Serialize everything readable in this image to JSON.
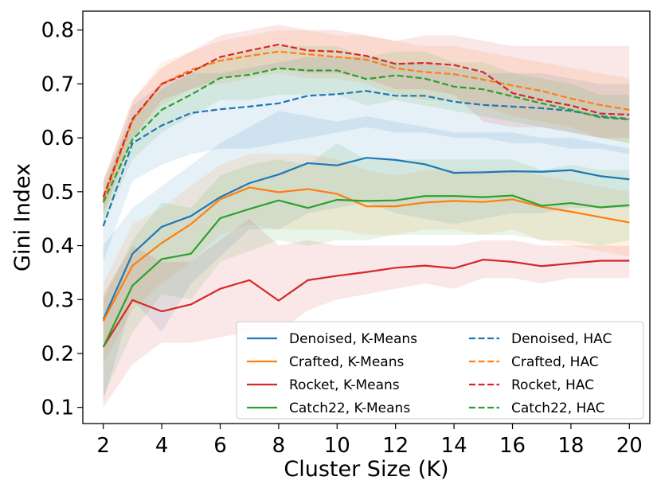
{
  "chart_data": {
    "type": "line",
    "title": "",
    "xlabel": "Cluster Size (K)",
    "ylabel": "Gini Index",
    "xlim": [
      1.3,
      20.7
    ],
    "ylim": [
      0.07,
      0.835
    ],
    "xticks": [
      2,
      4,
      6,
      8,
      10,
      12,
      14,
      16,
      18,
      20
    ],
    "yticks": [
      0.1,
      0.2,
      0.3,
      0.4,
      0.5,
      0.6,
      0.7,
      0.8
    ],
    "x": [
      2,
      3,
      4,
      5,
      6,
      7,
      8,
      9,
      10,
      11,
      12,
      13,
      14,
      15,
      16,
      17,
      18,
      19,
      20
    ],
    "legend_position": "lower-right",
    "series": [
      {
        "name": "Denoised, K-Means",
        "color": "#1f77b4",
        "style": "solid",
        "values": [
          0.263,
          0.385,
          0.435,
          0.455,
          0.49,
          0.516,
          0.532,
          0.553,
          0.549,
          0.563,
          0.559,
          0.551,
          0.535,
          0.536,
          0.538,
          0.537,
          0.54,
          0.529,
          0.523
        ],
        "lower": [
          0.11,
          0.3,
          0.24,
          0.33,
          0.38,
          0.43,
          0.43,
          0.46,
          0.47,
          0.48,
          0.46,
          0.45,
          0.44,
          0.45,
          0.46,
          0.46,
          0.47,
          0.47,
          0.47
        ],
        "upper": [
          0.4,
          0.47,
          0.51,
          0.55,
          0.59,
          0.62,
          0.65,
          0.64,
          0.63,
          0.64,
          0.63,
          0.62,
          0.61,
          0.61,
          0.61,
          0.6,
          0.6,
          0.59,
          0.58
        ]
      },
      {
        "name": "Crafted, K-Means",
        "color": "#ff7f0e",
        "style": "solid",
        "values": [
          0.26,
          0.363,
          0.405,
          0.44,
          0.486,
          0.508,
          0.499,
          0.505,
          0.496,
          0.473,
          0.473,
          0.48,
          0.483,
          0.481,
          0.486,
          0.472,
          0.463,
          0.453,
          0.443
        ],
        "lower": [
          0.18,
          0.28,
          0.33,
          0.37,
          0.42,
          0.44,
          0.43,
          0.43,
          0.43,
          0.42,
          0.42,
          0.43,
          0.43,
          0.42,
          0.43,
          0.41,
          0.4,
          0.39,
          0.38
        ],
        "upper": [
          0.33,
          0.44,
          0.47,
          0.51,
          0.55,
          0.57,
          0.57,
          0.57,
          0.56,
          0.54,
          0.53,
          0.54,
          0.54,
          0.54,
          0.54,
          0.53,
          0.52,
          0.51,
          0.5
        ]
      },
      {
        "name": "Rocket, K-Means",
        "color": "#d62728",
        "style": "solid",
        "values": [
          0.212,
          0.299,
          0.278,
          0.291,
          0.32,
          0.336,
          0.298,
          0.336,
          0.344,
          0.351,
          0.359,
          0.363,
          0.358,
          0.374,
          0.37,
          0.362,
          0.367,
          0.372,
          0.372
        ],
        "lower": [
          0.1,
          0.18,
          0.22,
          0.22,
          0.23,
          0.24,
          0.24,
          0.28,
          0.3,
          0.31,
          0.32,
          0.33,
          0.32,
          0.34,
          0.34,
          0.33,
          0.34,
          0.34,
          0.34
        ],
        "upper": [
          0.31,
          0.4,
          0.37,
          0.37,
          0.41,
          0.45,
          0.4,
          0.41,
          0.4,
          0.4,
          0.4,
          0.4,
          0.4,
          0.41,
          0.41,
          0.4,
          0.4,
          0.4,
          0.4
        ]
      },
      {
        "name": "Catch22, K-Means",
        "color": "#2ca02c",
        "style": "solid",
        "values": [
          0.212,
          0.326,
          0.375,
          0.385,
          0.451,
          0.468,
          0.484,
          0.47,
          0.485,
          0.483,
          0.484,
          0.492,
          0.492,
          0.49,
          0.493,
          0.474,
          0.479,
          0.471,
          0.475
        ],
        "lower": [
          0.12,
          0.24,
          0.31,
          0.3,
          0.37,
          0.39,
          0.41,
          0.4,
          0.41,
          0.41,
          0.42,
          0.42,
          0.42,
          0.42,
          0.42,
          0.41,
          0.41,
          0.4,
          0.41
        ],
        "upper": [
          0.3,
          0.41,
          0.48,
          0.47,
          0.53,
          0.55,
          0.56,
          0.55,
          0.59,
          0.56,
          0.56,
          0.56,
          0.56,
          0.56,
          0.56,
          0.54,
          0.55,
          0.54,
          0.54
        ]
      },
      {
        "name": "Denoised, HAC",
        "color": "#1f77b4",
        "style": "dashed",
        "values": [
          0.436,
          0.59,
          0.623,
          0.646,
          0.653,
          0.658,
          0.664,
          0.678,
          0.681,
          0.687,
          0.678,
          0.678,
          0.667,
          0.661,
          0.658,
          0.655,
          0.65,
          0.64,
          0.635
        ],
        "lower": [
          0.37,
          0.52,
          0.55,
          0.57,
          0.58,
          0.58,
          0.59,
          0.6,
          0.61,
          0.62,
          0.61,
          0.61,
          0.6,
          0.6,
          0.59,
          0.59,
          0.58,
          0.58,
          0.57
        ],
        "upper": [
          0.5,
          0.66,
          0.7,
          0.72,
          0.72,
          0.73,
          0.74,
          0.75,
          0.75,
          0.75,
          0.74,
          0.74,
          0.73,
          0.72,
          0.72,
          0.72,
          0.71,
          0.7,
          0.7
        ]
      },
      {
        "name": "Crafted, HAC",
        "color": "#ff7f0e",
        "style": "dashed",
        "values": [
          0.484,
          0.632,
          0.7,
          0.726,
          0.743,
          0.752,
          0.76,
          0.755,
          0.75,
          0.745,
          0.729,
          0.722,
          0.718,
          0.708,
          0.697,
          0.687,
          0.673,
          0.661,
          0.652
        ],
        "lower": [
          0.45,
          0.6,
          0.66,
          0.69,
          0.7,
          0.71,
          0.72,
          0.71,
          0.71,
          0.7,
          0.68,
          0.67,
          0.67,
          0.66,
          0.64,
          0.63,
          0.62,
          0.6,
          0.59
        ],
        "upper": [
          0.52,
          0.67,
          0.74,
          0.76,
          0.78,
          0.79,
          0.8,
          0.8,
          0.79,
          0.79,
          0.78,
          0.77,
          0.77,
          0.76,
          0.75,
          0.74,
          0.73,
          0.72,
          0.71
        ]
      },
      {
        "name": "Rocket, HAC",
        "color": "#d62728",
        "style": "dashed",
        "values": [
          0.49,
          0.635,
          0.7,
          0.722,
          0.75,
          0.762,
          0.773,
          0.762,
          0.76,
          0.752,
          0.737,
          0.739,
          0.735,
          0.722,
          0.683,
          0.67,
          0.66,
          0.645,
          0.643
        ],
        "lower": [
          0.46,
          0.6,
          0.67,
          0.69,
          0.71,
          0.72,
          0.73,
          0.72,
          0.72,
          0.71,
          0.69,
          0.69,
          0.68,
          0.63,
          0.62,
          0.62,
          0.61,
          0.6,
          0.6
        ],
        "upper": [
          0.52,
          0.67,
          0.73,
          0.76,
          0.79,
          0.8,
          0.81,
          0.8,
          0.8,
          0.79,
          0.78,
          0.79,
          0.79,
          0.78,
          0.77,
          0.77,
          0.77,
          0.77,
          0.77
        ]
      },
      {
        "name": "Catch22, HAC",
        "color": "#2ca02c",
        "style": "dashed",
        "values": [
          0.48,
          0.597,
          0.652,
          0.68,
          0.711,
          0.717,
          0.729,
          0.725,
          0.725,
          0.709,
          0.716,
          0.71,
          0.695,
          0.69,
          0.677,
          0.664,
          0.652,
          0.638,
          0.634
        ],
        "lower": [
          0.44,
          0.56,
          0.61,
          0.64,
          0.67,
          0.67,
          0.68,
          0.68,
          0.68,
          0.66,
          0.67,
          0.66,
          0.65,
          0.64,
          0.63,
          0.62,
          0.61,
          0.6,
          0.59
        ],
        "upper": [
          0.52,
          0.64,
          0.69,
          0.72,
          0.75,
          0.76,
          0.77,
          0.77,
          0.77,
          0.75,
          0.76,
          0.76,
          0.74,
          0.74,
          0.72,
          0.71,
          0.7,
          0.68,
          0.68
        ]
      }
    ]
  }
}
